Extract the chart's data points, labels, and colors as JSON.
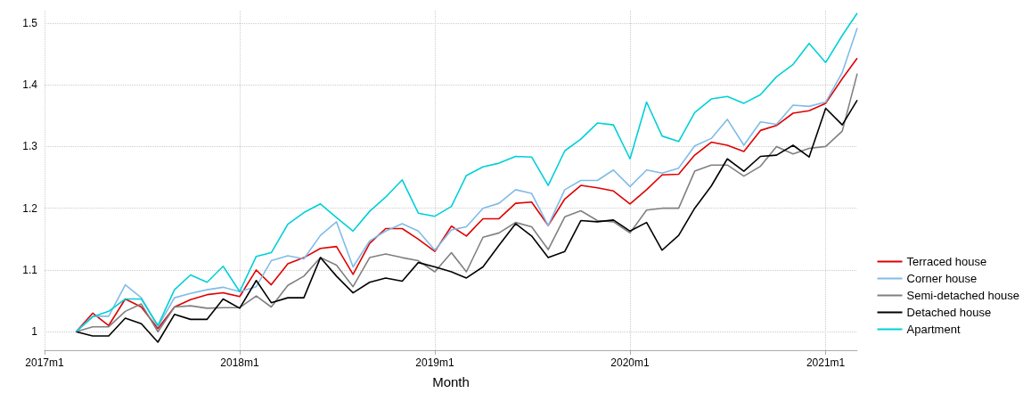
{
  "chart_data": {
    "type": "line",
    "xlabel": "Month",
    "x": [
      "2017-03",
      "2017-04",
      "2017-05",
      "2017-06",
      "2017-07",
      "2017-08",
      "2017-09",
      "2017-10",
      "2017-11",
      "2017-12",
      "2018-01",
      "2018-02",
      "2018-03",
      "2018-04",
      "2018-05",
      "2018-06",
      "2018-07",
      "2018-08",
      "2018-09",
      "2018-10",
      "2018-11",
      "2018-12",
      "2019-01",
      "2019-02",
      "2019-03",
      "2019-04",
      "2019-05",
      "2019-06",
      "2019-07",
      "2019-08",
      "2019-09",
      "2019-10",
      "2019-11",
      "2019-12",
      "2020-01",
      "2020-02",
      "2020-03",
      "2020-04",
      "2020-05",
      "2020-06",
      "2020-07",
      "2020-08",
      "2020-09",
      "2020-10",
      "2020-11",
      "2020-12",
      "2021-01",
      "2021-02",
      "2021-03"
    ],
    "xlim": [
      "2017-01",
      "2021-03"
    ],
    "xticks": [
      {
        "value": "2017-01",
        "label": "2017m1"
      },
      {
        "value": "2018-01",
        "label": "2018m1"
      },
      {
        "value": "2019-01",
        "label": "2019m1"
      },
      {
        "value": "2020-01",
        "label": "2020m1"
      },
      {
        "value": "2021-01",
        "label": "2021m1"
      }
    ],
    "ylim": [
      0.97,
      1.52
    ],
    "yticks": [
      1,
      1.1,
      1.2,
      1.3,
      1.4,
      1.5
    ],
    "grid": true,
    "legend": "right",
    "marker": "none",
    "line_style": "solid",
    "series": [
      {
        "name": "Terraced house",
        "color": "#e00000",
        "values": [
          1.0,
          1.03,
          1.01,
          1.053,
          1.04,
          1.005,
          1.04,
          1.052,
          1.06,
          1.063,
          1.057,
          1.1,
          1.076,
          1.11,
          1.12,
          1.135,
          1.138,
          1.093,
          1.143,
          1.167,
          1.167,
          1.15,
          1.13,
          1.171,
          1.155,
          1.183,
          1.183,
          1.208,
          1.21,
          1.172,
          1.215,
          1.237,
          1.233,
          1.228,
          1.207,
          1.23,
          1.254,
          1.255,
          1.286,
          1.307,
          1.302,
          1.292,
          1.326,
          1.334,
          1.354,
          1.358,
          1.37,
          1.41,
          1.443
        ]
      },
      {
        "name": "Corner house",
        "color": "#7fbce8",
        "values": [
          1.0,
          1.025,
          1.025,
          1.076,
          1.055,
          1.008,
          1.055,
          1.062,
          1.068,
          1.072,
          1.065,
          1.073,
          1.115,
          1.123,
          1.118,
          1.156,
          1.178,
          1.105,
          1.147,
          1.163,
          1.175,
          1.163,
          1.132,
          1.165,
          1.17,
          1.2,
          1.208,
          1.23,
          1.224,
          1.172,
          1.23,
          1.245,
          1.245,
          1.262,
          1.235,
          1.262,
          1.257,
          1.265,
          1.301,
          1.313,
          1.344,
          1.302,
          1.34,
          1.336,
          1.367,
          1.365,
          1.372,
          1.42,
          1.492
        ]
      },
      {
        "name": "Semi-detached house",
        "color": "#808080",
        "values": [
          1.0,
          1.008,
          1.008,
          1.033,
          1.045,
          1.0,
          1.04,
          1.042,
          1.038,
          1.039,
          1.039,
          1.058,
          1.04,
          1.075,
          1.09,
          1.12,
          1.108,
          1.073,
          1.12,
          1.126,
          1.12,
          1.115,
          1.097,
          1.128,
          1.097,
          1.153,
          1.16,
          1.177,
          1.17,
          1.133,
          1.186,
          1.196,
          1.18,
          1.178,
          1.16,
          1.197,
          1.2,
          1.2,
          1.26,
          1.27,
          1.27,
          1.252,
          1.268,
          1.3,
          1.288,
          1.297,
          1.3,
          1.325,
          1.418
        ]
      },
      {
        "name": "Detached house",
        "color": "#000000",
        "values": [
          1.0,
          0.993,
          0.993,
          1.022,
          1.013,
          0.983,
          1.028,
          1.02,
          1.02,
          1.053,
          1.038,
          1.083,
          1.047,
          1.055,
          1.055,
          1.12,
          1.09,
          1.063,
          1.08,
          1.087,
          1.082,
          1.112,
          1.105,
          1.097,
          1.087,
          1.105,
          1.14,
          1.175,
          1.155,
          1.12,
          1.13,
          1.18,
          1.178,
          1.181,
          1.163,
          1.177,
          1.132,
          1.156,
          1.2,
          1.236,
          1.28,
          1.26,
          1.284,
          1.286,
          1.302,
          1.283,
          1.362,
          1.335,
          1.375
        ]
      },
      {
        "name": "Apartment",
        "color": "#00d0d8",
        "values": [
          1.0,
          1.024,
          1.033,
          1.053,
          1.053,
          1.01,
          1.068,
          1.092,
          1.08,
          1.106,
          1.065,
          1.122,
          1.128,
          1.174,
          1.193,
          1.207,
          1.185,
          1.163,
          1.195,
          1.218,
          1.246,
          1.192,
          1.187,
          1.203,
          1.253,
          1.267,
          1.273,
          1.284,
          1.283,
          1.237,
          1.293,
          1.312,
          1.338,
          1.335,
          1.28,
          1.372,
          1.317,
          1.308,
          1.355,
          1.377,
          1.381,
          1.37,
          1.384,
          1.413,
          1.433,
          1.467,
          1.436,
          1.48,
          1.516
        ]
      }
    ]
  }
}
